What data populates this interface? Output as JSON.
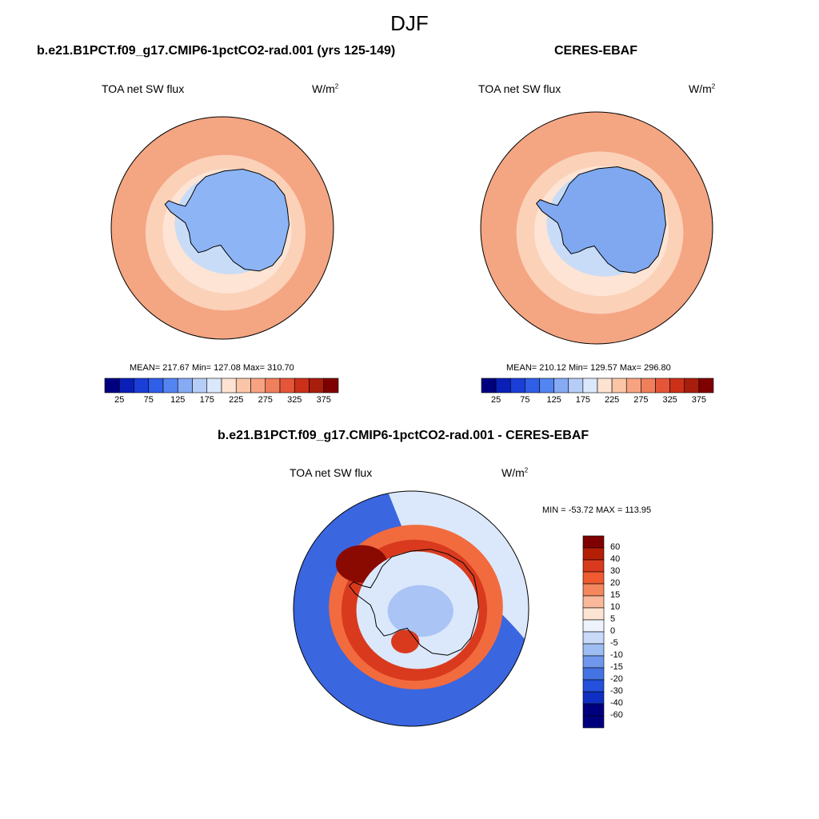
{
  "figure": {
    "title": "DJF"
  },
  "panels": [
    {
      "title": "b.e21.B1PCT.f09_g17.CMIP6-1pctCO2-rad.001 (yrs 125-149)",
      "variable": "TOA net SW flux",
      "units_base": "W/m",
      "units_exp": "2",
      "stats": "MEAN= 217.67  Min= 127.08  Max= 310.70",
      "colors": {
        "ocean": "#f4a582",
        "ocean_dark": "#e8715a",
        "ocean_light": "#fbd1b8",
        "pale": "#fde4d4",
        "ice": "#8db4f5",
        "ice_light": "#c9dcf7"
      }
    },
    {
      "title": "CERES-EBAF",
      "variable": "TOA net SW flux",
      "units_base": "W/m",
      "units_exp": "2",
      "stats": "MEAN= 210.12  Min= 129.57  Max= 296.80",
      "colors": {
        "ocean": "#f4a582",
        "ocean_dark": "#e35d44",
        "ocean_light": "#fbd1b8",
        "pale": "#fde4d4",
        "ice": "#7fa8f0",
        "ice_light": "#c9dcf7"
      }
    }
  ],
  "colorbar_top": {
    "colors": [
      "#00007f",
      "#0a1fb8",
      "#1a3ed6",
      "#2f5ee8",
      "#5384f0",
      "#86aaf4",
      "#b6cdf7",
      "#dbe8fb",
      "#fde3d2",
      "#fbc5a8",
      "#f7a381",
      "#f07f5c",
      "#e5553a",
      "#cc3019",
      "#a91d0d",
      "#7f0000"
    ],
    "labels": [
      "25",
      "75",
      "125",
      "175",
      "225",
      "275",
      "325",
      "375"
    ]
  },
  "diff_panel": {
    "title": "b.e21.B1PCT.f09_g17.CMIP6-1pctCO2-rad.001 - CERES-EBAF",
    "variable": "TOA net SW flux",
    "units_base": "W/m",
    "units_exp": "2",
    "minmax": "MIN = -53.72 MAX = 113.95",
    "colors": {
      "blue": "#3a66e0",
      "blue_mid": "#5a86ec",
      "pale_blue": "#dbe8fb",
      "light_blue": "#a9c4f5",
      "red": "#d93a1e",
      "dark_red": "#8a0a02",
      "orange": "#f26b3e",
      "peach": "#f9b99a"
    }
  },
  "colorbar_diff": {
    "colors": [
      "#7f0000",
      "#b51e07",
      "#d93a1e",
      "#ef5a30",
      "#f4875e",
      "#f9b99a",
      "#fde3d2",
      "#eef3fb",
      "#c8daf7",
      "#9dbdf3",
      "#6f97ec",
      "#4474e4",
      "#2450dc",
      "#0f2fc2",
      "#00007f"
    ],
    "labels": [
      "60",
      "40",
      "30",
      "20",
      "15",
      "10",
      "5",
      "0",
      "-5",
      "-10",
      "-15",
      "-20",
      "-30",
      "-40",
      "-60"
    ]
  }
}
